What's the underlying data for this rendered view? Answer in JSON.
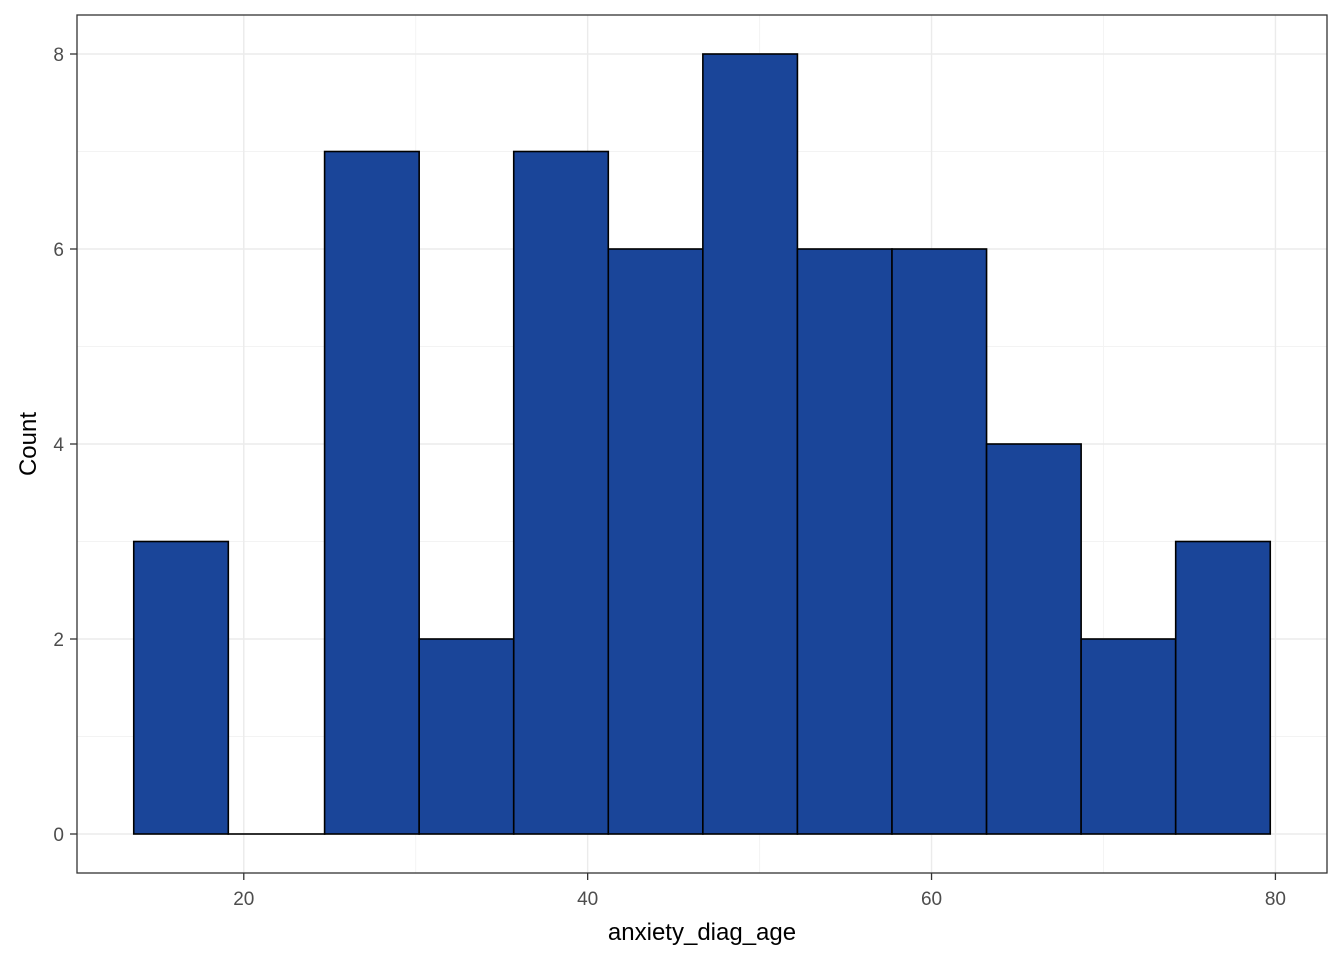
{
  "chart_data": {
    "type": "bar",
    "title": "",
    "xlabel": "anxiety_diag_age",
    "ylabel": "Count",
    "bins": [
      {
        "x_start": 13.6,
        "x_end": 19.1,
        "count": 3
      },
      {
        "x_start": 19.1,
        "x_end": 24.7,
        "count": 0
      },
      {
        "x_start": 24.7,
        "x_end": 30.2,
        "count": 7
      },
      {
        "x_start": 30.2,
        "x_end": 35.7,
        "count": 2
      },
      {
        "x_start": 35.7,
        "x_end": 41.2,
        "count": 7
      },
      {
        "x_start": 41.2,
        "x_end": 46.7,
        "count": 6
      },
      {
        "x_start": 46.7,
        "x_end": 52.2,
        "count": 8
      },
      {
        "x_start": 52.2,
        "x_end": 57.7,
        "count": 6
      },
      {
        "x_start": 57.7,
        "x_end": 63.2,
        "count": 6
      },
      {
        "x_start": 63.2,
        "x_end": 68.7,
        "count": 4
      },
      {
        "x_start": 68.7,
        "x_end": 74.2,
        "count": 2
      },
      {
        "x_start": 74.2,
        "x_end": 79.7,
        "count": 3
      }
    ],
    "x_ticks": [
      20,
      40,
      60,
      80
    ],
    "y_ticks": [
      0,
      2,
      4,
      6,
      8
    ],
    "xlim": [
      10.3,
      83.0
    ],
    "ylim": [
      -0.4,
      8.4
    ],
    "grid": true,
    "bar_fill": "#1a4599",
    "bar_outline": "#000000",
    "theme": "bw"
  }
}
